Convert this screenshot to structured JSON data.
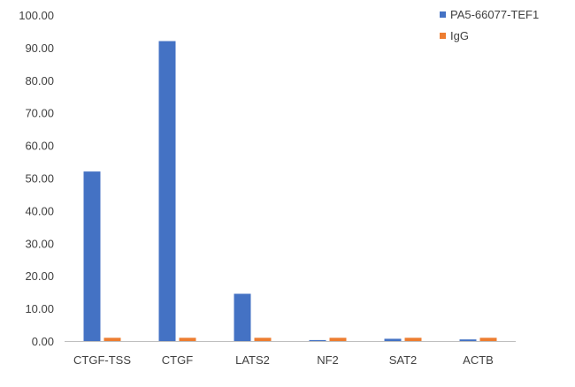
{
  "chart_data": {
    "type": "bar",
    "title": "",
    "xlabel": "",
    "ylabel": "",
    "categories": [
      "CTGF-TSS",
      "CTGF",
      "LATS2",
      "NF2",
      "SAT2",
      "ACTB"
    ],
    "series": [
      {
        "name": "PA5-66077-TEF1",
        "color": "#4472C4",
        "values": [
          52.0,
          92.0,
          14.5,
          0.3,
          0.7,
          0.5
        ]
      },
      {
        "name": "IgG",
        "color": "#ED7D31",
        "values": [
          1.0,
          1.0,
          1.0,
          1.0,
          1.0,
          1.0
        ]
      }
    ],
    "ylim": [
      0,
      100
    ],
    "yticks": [
      "0.00",
      "10.00",
      "20.00",
      "30.00",
      "40.00",
      "50.00",
      "60.00",
      "70.00",
      "80.00",
      "90.00",
      "100.00"
    ],
    "grid": false,
    "legend_position": "top-right"
  }
}
